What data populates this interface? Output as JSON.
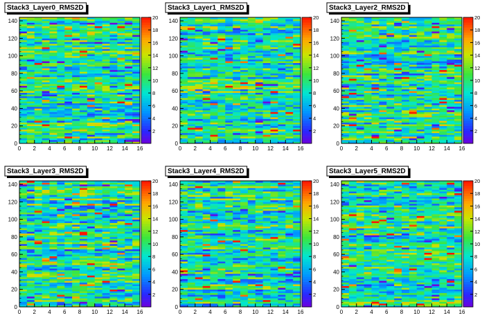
{
  "chart_data": [
    {
      "type": "heatmap",
      "title": "Stack3_Layer0_RMS2D",
      "xlim": [
        0,
        16
      ],
      "ylim": [
        0,
        144
      ],
      "zlim": [
        0,
        20
      ],
      "x_ticks": [
        "0",
        "2",
        "4",
        "6",
        "8",
        "10",
        "12",
        "14",
        "16"
      ],
      "y_ticks": [
        "0",
        "20",
        "40",
        "60",
        "80",
        "100",
        "120",
        "140"
      ],
      "z_ticks": [
        "2",
        "4",
        "6",
        "8",
        "10",
        "12",
        "14",
        "16",
        "18",
        "20"
      ],
      "bins": {
        "x": 16,
        "y": 72
      },
      "value_note": "per-bin z values range 0–20, mostly 6–12"
    },
    {
      "type": "heatmap",
      "title": "Stack3_Layer1_RMS2D",
      "xlim": [
        0,
        16
      ],
      "ylim": [
        0,
        144
      ],
      "zlim": [
        0,
        20
      ],
      "x_ticks": [
        "0",
        "2",
        "4",
        "6",
        "8",
        "10",
        "12",
        "14",
        "16"
      ],
      "y_ticks": [
        "0",
        "20",
        "40",
        "60",
        "80",
        "100",
        "120",
        "140"
      ],
      "z_ticks": [
        "2",
        "4",
        "6",
        "8",
        "10",
        "12",
        "14",
        "16",
        "18",
        "20"
      ],
      "bins": {
        "x": 16,
        "y": 72
      },
      "value_note": "per-bin z values range 0–20, mostly 6–12"
    },
    {
      "type": "heatmap",
      "title": "Stack3_Layer2_RMS2D",
      "xlim": [
        0,
        16
      ],
      "ylim": [
        0,
        144
      ],
      "zlim": [
        0,
        20
      ],
      "x_ticks": [
        "0",
        "2",
        "4",
        "6",
        "8",
        "10",
        "12",
        "14",
        "16"
      ],
      "y_ticks": [
        "0",
        "20",
        "40",
        "60",
        "80",
        "100",
        "120",
        "140"
      ],
      "z_ticks": [
        "2",
        "4",
        "6",
        "8",
        "10",
        "12",
        "14",
        "16",
        "18",
        "20"
      ],
      "bins": {
        "x": 16,
        "y": 72
      },
      "value_note": "per-bin z values range 0–20, mostly 6–12"
    },
    {
      "type": "heatmap",
      "title": "Stack3_Layer3_RMS2D",
      "xlim": [
        0,
        16
      ],
      "ylim": [
        0,
        144
      ],
      "zlim": [
        0,
        20
      ],
      "x_ticks": [
        "0",
        "2",
        "4",
        "6",
        "8",
        "10",
        "12",
        "14",
        "16"
      ],
      "y_ticks": [
        "0",
        "20",
        "40",
        "60",
        "80",
        "100",
        "120",
        "140"
      ],
      "z_ticks": [
        "2",
        "4",
        "6",
        "8",
        "10",
        "12",
        "14",
        "16",
        "18",
        "20"
      ],
      "bins": {
        "x": 16,
        "y": 72
      },
      "value_note": "per-bin z values range 0–20, mostly 6–12"
    },
    {
      "type": "heatmap",
      "title": "Stack3_Layer4_RMS2D",
      "xlim": [
        0,
        16
      ],
      "ylim": [
        0,
        144
      ],
      "zlim": [
        0,
        20
      ],
      "x_ticks": [
        "0",
        "2",
        "4",
        "6",
        "8",
        "10",
        "12",
        "14",
        "16"
      ],
      "y_ticks": [
        "0",
        "20",
        "40",
        "60",
        "80",
        "100",
        "120",
        "140"
      ],
      "z_ticks": [
        "2",
        "4",
        "6",
        "8",
        "10",
        "12",
        "14",
        "16",
        "18",
        "20"
      ],
      "bins": {
        "x": 16,
        "y": 72
      },
      "value_note": "per-bin z values range 0–20, mostly 6–12"
    },
    {
      "type": "heatmap",
      "title": "Stack3_Layer5_RMS2D",
      "xlim": [
        0,
        16
      ],
      "ylim": [
        0,
        144
      ],
      "zlim": [
        0,
        20
      ],
      "x_ticks": [
        "0",
        "2",
        "4",
        "6",
        "8",
        "10",
        "12",
        "14",
        "16"
      ],
      "y_ticks": [
        "0",
        "20",
        "40",
        "60",
        "80",
        "100",
        "120",
        "140"
      ],
      "z_ticks": [
        "2",
        "4",
        "6",
        "8",
        "10",
        "12",
        "14",
        "16",
        "18",
        "20"
      ],
      "bins": {
        "x": 16,
        "y": 72
      },
      "value_note": "per-bin z values range 0–20, mostly 6–12"
    }
  ]
}
